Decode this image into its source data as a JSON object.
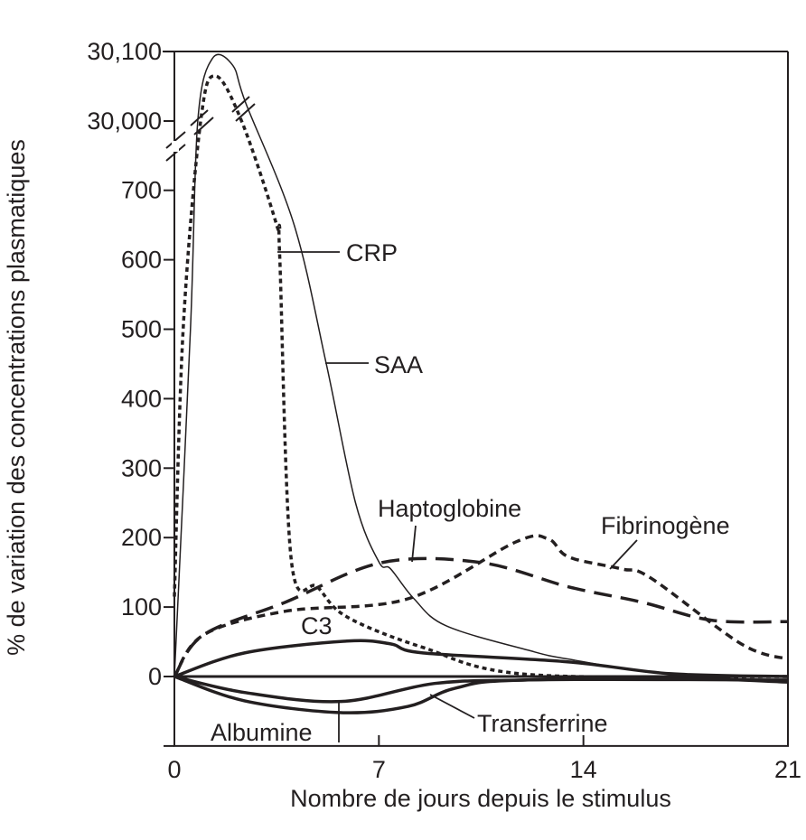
{
  "chart_data": {
    "type": "line",
    "title": "",
    "xlabel": "Nombre de jours depuis le stimulus",
    "ylabel": "% de variation des concentrations plasmatiques",
    "xlim": [
      0,
      21
    ],
    "ylim": [
      -100,
      30100
    ],
    "y_axis_break": [
      700,
      30000
    ],
    "x_ticks": [
      "0",
      "7",
      "14",
      "21"
    ],
    "y_ticks": [
      "30,100",
      "30,000",
      "700",
      "600",
      "500",
      "400",
      "300",
      "200",
      "100",
      "0"
    ],
    "grid": false,
    "legend": "inline labels",
    "series": [
      {
        "name": "CRP",
        "style": "dotted",
        "x": [
          0,
          0.3,
          0.9,
          1.4,
          2.3,
          3.5,
          3.6,
          4.0,
          4.9,
          5.9,
          8.5,
          12.1,
          21
        ],
        "y": [
          115,
          500,
          30000,
          30065,
          30000,
          650,
          610,
          168,
          129,
          86,
          42,
          3,
          0
        ]
      },
      {
        "name": "SAA",
        "style": "thin-solid",
        "x": [
          0,
          0.55,
          0.8,
          1.3,
          2.0,
          2.45,
          4.1,
          5.2,
          6.2,
          7.0,
          7.4,
          8.2,
          9.3,
          12.1,
          13.5,
          17,
          21
        ],
        "y": [
          0,
          500,
          30000,
          30090,
          30080,
          30025,
          650,
          450,
          250,
          165,
          155,
          112,
          73,
          38,
          25,
          3,
          0
        ]
      },
      {
        "name": "Haptoglobine",
        "style": "long-dash",
        "x": [
          0,
          1,
          3.8,
          7.1,
          10.5,
          13.5,
          16,
          18.4,
          21
        ],
        "y": [
          0,
          60,
          107,
          164,
          164,
          129,
          107,
          81,
          79
        ]
      },
      {
        "name": "Fibrinogène",
        "style": "short-dash",
        "x": [
          0,
          1,
          3.8,
          8,
          11.7,
          12.8,
          13.5,
          15.3,
          16.3,
          19.4,
          21
        ],
        "y": [
          0,
          60,
          94,
          112,
          194,
          198,
          172,
          155,
          142,
          47,
          25
        ]
      },
      {
        "name": "C3",
        "style": "thick-solid",
        "x": [
          0,
          2.4,
          5.9,
          7.4,
          8.5,
          13.5,
          17,
          21
        ],
        "y": [
          0,
          34,
          51,
          47,
          34,
          21,
          4,
          0
        ]
      },
      {
        "name": "Transferrine",
        "style": "thick-solid",
        "x": [
          0,
          2.4,
          5.7,
          8.9,
          12,
          17,
          21
        ],
        "y": [
          0,
          -23,
          -36,
          -10,
          -5,
          -2,
          -8
        ]
      },
      {
        "name": "Albumine",
        "style": "thick-solid",
        "x": [
          0,
          2.4,
          5.7,
          8,
          9.6,
          12,
          21
        ],
        "y": [
          0,
          -35,
          -52,
          -43,
          -17,
          -5,
          -5
        ]
      }
    ],
    "colors": {
      "line": "#231f20"
    }
  }
}
